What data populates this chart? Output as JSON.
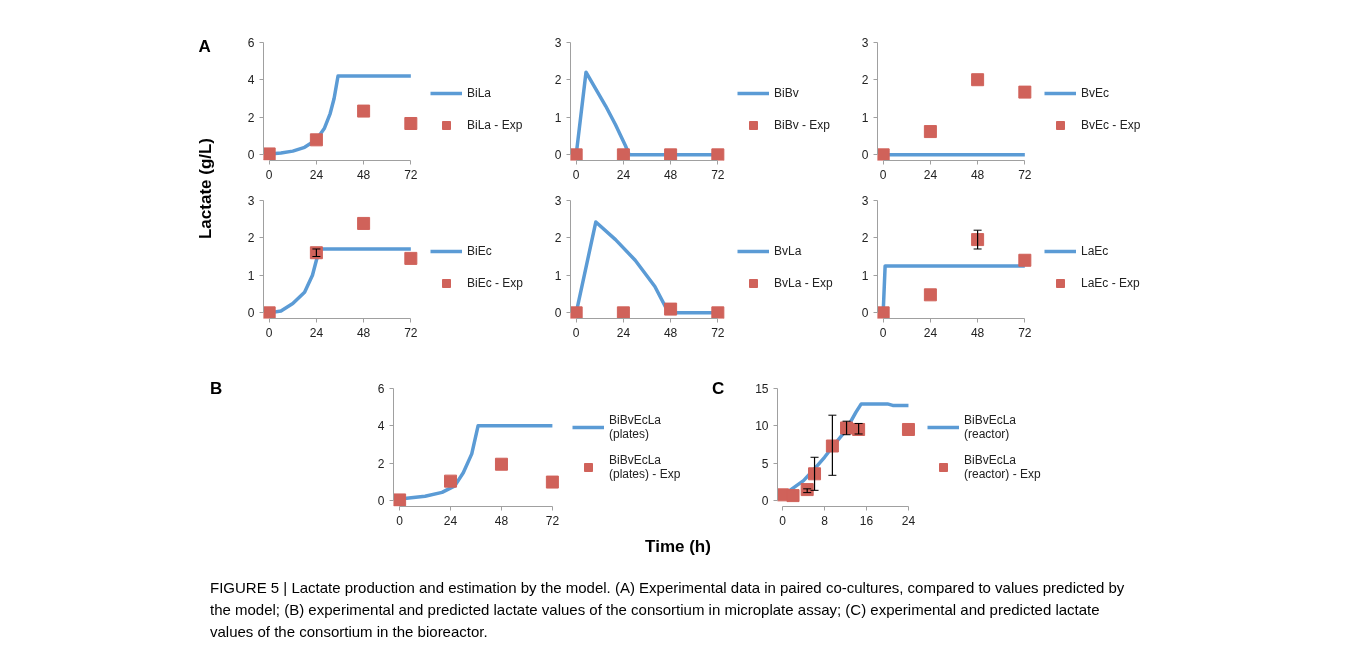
{
  "chart_data": [
    {
      "type": "line",
      "annotations": [
        "A"
      ],
      "ylabel": "Lactate (g/L)",
      "xlim": [
        0,
        72
      ],
      "xticks": [
        0,
        24,
        48,
        72
      ],
      "ylim": [
        0,
        6
      ],
      "yticks": [
        0,
        2,
        4,
        6
      ],
      "grid": false,
      "legend": "right",
      "series": [
        {
          "name": "BiLa",
          "color": "#5b9bd5",
          "x": [
            0,
            6,
            12,
            18,
            24,
            28,
            31,
            33,
            35,
            72
          ],
          "values": [
            0.05,
            0.1,
            0.2,
            0.4,
            0.8,
            1.4,
            2.2,
            3.0,
            4.2,
            4.2
          ]
        },
        {
          "name": "BiLa - Exp",
          "type": "scatter",
          "marker": "square",
          "color": "#d0625a",
          "x": [
            0,
            24,
            48,
            72
          ],
          "values": [
            0.05,
            0.8,
            2.33,
            1.67
          ]
        }
      ]
    },
    {
      "type": "line",
      "xlim": [
        0,
        72
      ],
      "xticks": [
        0,
        24,
        48,
        72
      ],
      "ylim": [
        0,
        3
      ],
      "yticks": [
        0,
        1,
        2,
        3
      ],
      "grid": false,
      "legend": "right",
      "series": [
        {
          "name": "BiBv",
          "color": "#5b9bd5",
          "x": [
            0,
            5,
            10,
            15,
            20,
            25,
            27,
            72
          ],
          "values": [
            0,
            2.2,
            1.75,
            1.3,
            0.8,
            0.25,
            0,
            0
          ]
        },
        {
          "name": "BiBv - Exp",
          "type": "scatter",
          "marker": "square",
          "color": "#d0625a",
          "x": [
            0,
            24,
            48,
            72
          ],
          "values": [
            0,
            0,
            0,
            0
          ]
        }
      ]
    },
    {
      "type": "line",
      "xlim": [
        0,
        72
      ],
      "xticks": [
        0,
        24,
        48,
        72
      ],
      "ylim": [
        0,
        3
      ],
      "yticks": [
        0,
        1,
        2,
        3
      ],
      "grid": false,
      "legend": "right",
      "series": [
        {
          "name": "BvEc",
          "color": "#5b9bd5",
          "x": [
            0,
            72
          ],
          "values": [
            0,
            0
          ]
        },
        {
          "name": "BvEc - Exp",
          "type": "scatter",
          "marker": "square",
          "color": "#d0625a",
          "x": [
            0,
            24,
            48,
            72
          ],
          "values": [
            0,
            0.62,
            2.0,
            1.67
          ]
        }
      ]
    },
    {
      "type": "line",
      "xlim": [
        0,
        72
      ],
      "xticks": [
        0,
        24,
        48,
        72
      ],
      "ylim": [
        0,
        3
      ],
      "yticks": [
        0,
        1,
        2,
        3
      ],
      "grid": false,
      "legend": "right",
      "series": [
        {
          "name": "BiEc",
          "color": "#5b9bd5",
          "x": [
            0,
            6,
            12,
            18,
            22,
            24,
            26,
            72
          ],
          "values": [
            0,
            0.05,
            0.25,
            0.55,
            1.0,
            1.4,
            1.7,
            1.7
          ]
        },
        {
          "name": "BiEc - Exp",
          "type": "scatter",
          "marker": "square",
          "color": "#d0625a",
          "x": [
            0,
            24,
            48,
            72
          ],
          "values": [
            0,
            1.6,
            2.38,
            1.45
          ],
          "errors": [
            null,
            [
              1.5,
              1.7
            ],
            null,
            null
          ]
        }
      ]
    },
    {
      "type": "line",
      "xlim": [
        0,
        72
      ],
      "xticks": [
        0,
        24,
        48,
        72
      ],
      "ylim": [
        0,
        3
      ],
      "yticks": [
        0,
        1,
        2,
        3
      ],
      "grid": false,
      "legend": "right",
      "series": [
        {
          "name": "BvLa",
          "color": "#5b9bd5",
          "x": [
            0,
            10,
            20,
            30,
            40,
            46,
            48,
            72
          ],
          "values": [
            0,
            2.42,
            1.95,
            1.4,
            0.7,
            0.1,
            0,
            0
          ]
        },
        {
          "name": "BvLa - Exp",
          "type": "scatter",
          "marker": "square",
          "color": "#d0625a",
          "x": [
            0,
            24,
            48,
            72
          ],
          "values": [
            0,
            0,
            0.1,
            0
          ]
        }
      ]
    },
    {
      "type": "line",
      "xlim": [
        0,
        72
      ],
      "xticks": [
        0,
        24,
        48,
        72
      ],
      "ylim": [
        0,
        3
      ],
      "yticks": [
        0,
        1,
        2,
        3
      ],
      "grid": false,
      "legend": "right",
      "series": [
        {
          "name": "LaEc",
          "color": "#5b9bd5",
          "x": [
            0,
            1,
            72
          ],
          "values": [
            0,
            1.25,
            1.25
          ]
        },
        {
          "name": "LaEc - Exp",
          "type": "scatter",
          "marker": "square",
          "color": "#d0625a",
          "x": [
            0,
            24,
            48,
            72
          ],
          "values": [
            0,
            0.48,
            1.95,
            1.4
          ],
          "errors": [
            null,
            null,
            [
              1.7,
              2.2
            ],
            null
          ]
        }
      ]
    },
    {
      "type": "line",
      "annotations": [
        "B"
      ],
      "xlabel": "Time (h)",
      "xlim": [
        0,
        72
      ],
      "xticks": [
        0,
        24,
        48,
        72
      ],
      "ylim": [
        0,
        6
      ],
      "yticks": [
        0,
        2,
        4,
        6
      ],
      "grid": false,
      "legend": "right",
      "series": [
        {
          "name": "BiBvEcLa (plates)",
          "color": "#5b9bd5",
          "x": [
            0,
            12,
            20,
            26,
            30,
            34,
            37,
            72
          ],
          "values": [
            0.1,
            0.25,
            0.45,
            0.8,
            1.5,
            2.5,
            4.0,
            4.0
          ]
        },
        {
          "name": "BiBvEcLa (plates) - Exp",
          "type": "scatter",
          "marker": "square",
          "color": "#d0625a",
          "x": [
            0,
            24,
            48,
            72
          ],
          "values": [
            0.05,
            1.05,
            1.95,
            1.0
          ]
        }
      ]
    },
    {
      "type": "line",
      "annotations": [
        "C",
        "FIGURE 5 | Lactate production and estimation by the model. (A) Experimental data in paired co-cultures, compared to values predicted by the model; (B) experimental and predicted lactate values of the consortium in microplate assay; (C) experimental and predicted lactate values of the consortium in the bioreactor."
      ],
      "xlim": [
        0,
        24
      ],
      "xticks": [
        0,
        8,
        16,
        24
      ],
      "ylim": [
        0,
        15
      ],
      "yticks": [
        0,
        5,
        10,
        15
      ],
      "grid": false,
      "legend": "right",
      "series": [
        {
          "name": "BiBvEcLa (reactor)",
          "color": "#5b9bd5",
          "x": [
            1,
            2,
            4,
            6,
            8,
            10,
            12,
            14,
            15,
            20,
            21,
            24
          ],
          "values": [
            1.2,
            1.7,
            2.7,
            4.2,
            5.8,
            7.6,
            9.3,
            11.8,
            12.9,
            12.9,
            12.7,
            12.7
          ]
        },
        {
          "name": "BiBvEcLa (reactor) - Exp",
          "type": "scatter",
          "marker": "square",
          "color": "#d0625a",
          "x": [
            0,
            2,
            4.7,
            6.1,
            9.5,
            12.2,
            14.5,
            24
          ],
          "values": [
            0.8,
            0.7,
            1.5,
            3.6,
            7.3,
            9.7,
            9.5,
            9.5
          ],
          "errors": [
            null,
            null,
            [
              1.1,
              1.6
            ],
            [
              1.4,
              5.8
            ],
            [
              3.4,
              11.4
            ],
            [
              8.8,
              10.6
            ],
            [
              8.9,
              10.3
            ],
            null
          ]
        }
      ]
    }
  ]
}
